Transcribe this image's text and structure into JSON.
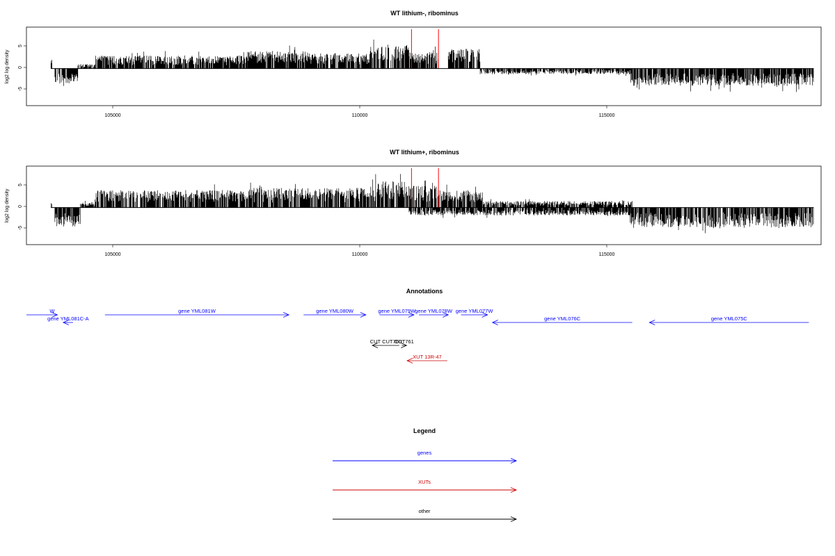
{
  "colors": {
    "gene": "#0000ff",
    "xut": "#cc0000",
    "other": "#000000",
    "signal": "#000000",
    "marker": "#ff0000"
  },
  "chart_data": [
    {
      "type": "bar",
      "title": "WT lithium-, ribominus",
      "ylabel": "log2 log density",
      "xlim": [
        103200,
        119400
      ],
      "ylim": [
        -8.5,
        9.5
      ],
      "x_ticks": [
        "105000",
        "110000",
        "115000"
      ],
      "y_ticks": [
        "5",
        "0",
        "-5"
      ],
      "grid": false,
      "markers_x": [
        111050,
        111600
      ],
      "segments": [
        {
          "start": 103700,
          "end": 103720,
          "sign": 1,
          "amp": 2.5
        },
        {
          "start": 103780,
          "end": 104250,
          "sign": -1,
          "amp": 3.5
        },
        {
          "start": 104250,
          "end": 104600,
          "sign": 1,
          "amp": 1.0
        },
        {
          "start": 104600,
          "end": 107700,
          "sign": 1,
          "amp": 3.0
        },
        {
          "start": 107700,
          "end": 109000,
          "sign": 1,
          "amp": 4.0
        },
        {
          "start": 109000,
          "end": 110200,
          "sign": 1,
          "amp": 3.5
        },
        {
          "start": 110200,
          "end": 111000,
          "sign": 1,
          "amp": 5.5
        },
        {
          "start": 111000,
          "end": 111600,
          "sign": 1,
          "amp": 4.0
        },
        {
          "start": 111800,
          "end": 112450,
          "sign": 1,
          "amp": 4.5
        },
        {
          "start": 112450,
          "end": 115550,
          "sign": -1,
          "amp": 1.3
        },
        {
          "start": 115500,
          "end": 119250,
          "sign": -1,
          "amp": 4.0
        }
      ]
    },
    {
      "type": "bar",
      "title": "WT lithium+, ribominus",
      "ylabel": "log2 log density",
      "xlim": [
        103200,
        119400
      ],
      "ylim": [
        -8.5,
        9.5
      ],
      "x_ticks": [
        "105000",
        "110000",
        "115000"
      ],
      "y_ticks": [
        "5",
        "0",
        "-5"
      ],
      "grid": false,
      "markers_x": [
        111050,
        111600
      ],
      "segments": [
        {
          "start": 103700,
          "end": 103720,
          "sign": 1,
          "amp": 2.5
        },
        {
          "start": 103780,
          "end": 104300,
          "sign": -1,
          "amp": 4.5
        },
        {
          "start": 104300,
          "end": 104600,
          "sign": 1,
          "amp": 1.2
        },
        {
          "start": 104600,
          "end": 107700,
          "sign": 1,
          "amp": 4.0
        },
        {
          "start": 107700,
          "end": 109000,
          "sign": 1,
          "amp": 4.5
        },
        {
          "start": 109000,
          "end": 110200,
          "sign": 1,
          "amp": 4.5
        },
        {
          "start": 110200,
          "end": 111000,
          "sign": 1,
          "amp": 6.0
        },
        {
          "start": 111000,
          "end": 111600,
          "sign": 1,
          "amp": 5.0
        },
        {
          "start": 111600,
          "end": 112500,
          "sign": 1,
          "amp": 4.0
        },
        {
          "start": 112500,
          "end": 115550,
          "sign": 1,
          "amp": 1.5
        },
        {
          "start": 111000,
          "end": 115550,
          "sign": -1,
          "amp": 1.8
        },
        {
          "start": 115500,
          "end": 119250,
          "sign": -1,
          "amp": 4.5
        }
      ]
    }
  ],
  "annotations": {
    "title": "Annotations",
    "xlim": [
      103200,
      119400
    ],
    "features": [
      {
        "label": "W",
        "type": "gene",
        "start": 103200,
        "end": 103830,
        "dir": 1,
        "row": 0,
        "label_align": "end"
      },
      {
        "label": "gene YML081C-A",
        "type": "gene",
        "start": 103950,
        "end": 104150,
        "dir": -1,
        "row": 1
      },
      {
        "label": "gene YML081W",
        "type": "gene",
        "start": 104800,
        "end": 108550,
        "dir": 1,
        "row": 0
      },
      {
        "label": "gene YML080W",
        "type": "gene",
        "start": 108850,
        "end": 110120,
        "dir": 1,
        "row": 0
      },
      {
        "label": "gene YML079W",
        "type": "gene",
        "start": 110400,
        "end": 111100,
        "dir": 1,
        "row": 0
      },
      {
        "label": "gene YML078W",
        "type": "gene",
        "start": 111200,
        "end": 111800,
        "dir": 1,
        "row": 0
      },
      {
        "label": "gene YML077W",
        "type": "gene",
        "start": 112060,
        "end": 112600,
        "dir": 1,
        "row": 0
      },
      {
        "label": "gene YML076C",
        "type": "gene",
        "start": 112700,
        "end": 115550,
        "dir": -1,
        "row": 1
      },
      {
        "label": "gene YML075C",
        "type": "gene",
        "start": 115900,
        "end": 119150,
        "dir": -1,
        "row": 1
      },
      {
        "label": "CUT CUT760",
        "type": "other",
        "start": 110250,
        "end": 110800,
        "dir": -1,
        "row": 4
      },
      {
        "label": "CUT761",
        "type": "other",
        "start": 110850,
        "end": 110950,
        "dir": 1,
        "row": 4
      },
      {
        "label": "XUT 13R-47",
        "type": "xut",
        "start": 110960,
        "end": 111780,
        "dir": -1,
        "row": 6
      }
    ]
  },
  "legend": {
    "title": "Legend",
    "items": [
      {
        "label": "genes",
        "type": "gene"
      },
      {
        "label": "XUTs",
        "type": "xut"
      },
      {
        "label": "other",
        "type": "other"
      }
    ]
  }
}
